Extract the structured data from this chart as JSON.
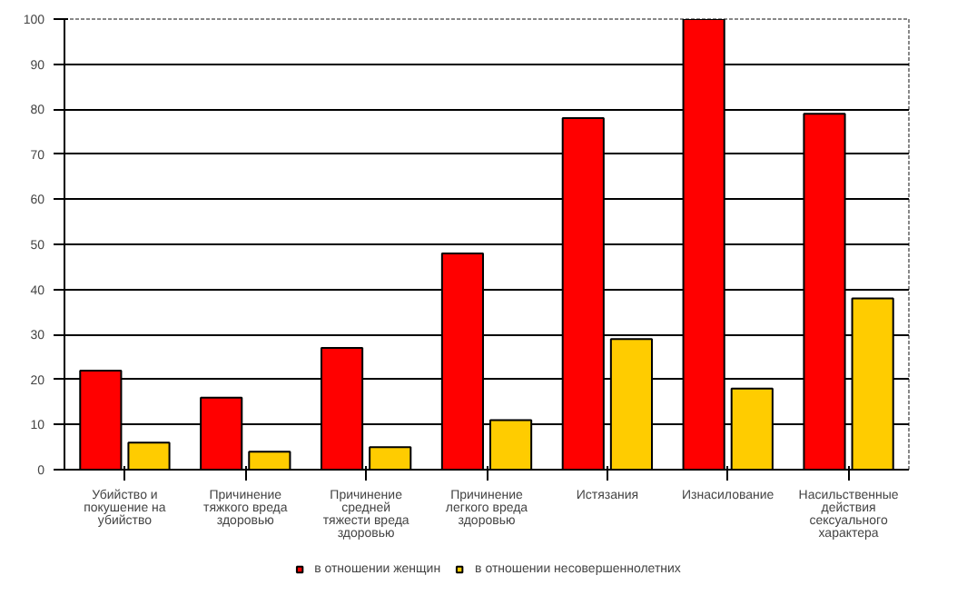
{
  "chart_data": {
    "type": "bar",
    "categories": [
      "Убийство и покушение на убийство",
      "Причинение тяжкого вреда здоровью",
      "Причинение средней тяжести вреда здоровью",
      "Причинение легкого вреда здоровью",
      "Истязания",
      "Изнасилование",
      "Насильственные действия сексуального характера"
    ],
    "series": [
      {
        "name": "в отношении женщин",
        "color": "#ff0000",
        "values": [
          22,
          16,
          27,
          48,
          78,
          100,
          79
        ]
      },
      {
        "name": "в отношении несовершеннолетних",
        "color": "#ffcc00",
        "values": [
          6,
          4,
          5,
          11,
          29,
          18,
          38
        ]
      }
    ],
    "ylim": [
      0,
      100
    ],
    "yticks": [
      0,
      10,
      20,
      30,
      40,
      50,
      60,
      70,
      80,
      90,
      100
    ],
    "grid": "y",
    "legend": "bottom"
  }
}
